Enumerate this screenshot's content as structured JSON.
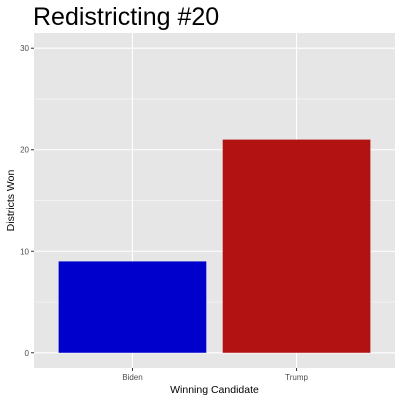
{
  "chart_data": {
    "type": "bar",
    "title": "Redistricting #20",
    "xlabel": "Winning Candidate",
    "ylabel": "Districts Won",
    "categories": [
      "Biden",
      "Trump"
    ],
    "values": [
      9,
      21
    ],
    "colors": [
      "#0000CC",
      "#B31212"
    ],
    "ylim": [
      -1.5,
      31.5
    ],
    "yticks": [
      0,
      10,
      20,
      30
    ],
    "grid": true,
    "panel_background": "#E6E6E6",
    "grid_color": "#FFFFFF",
    "legend": "none"
  }
}
